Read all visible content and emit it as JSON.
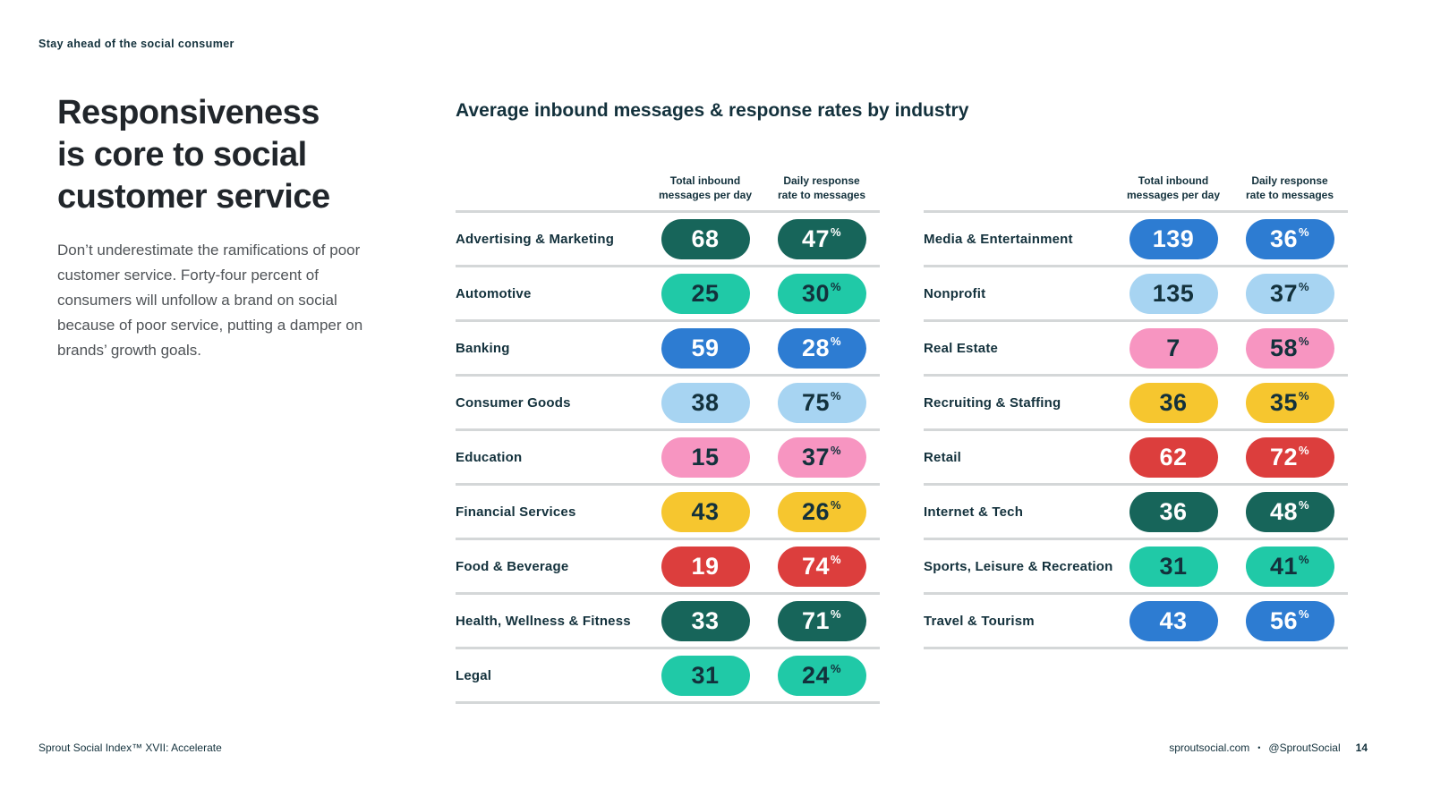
{
  "colors": {
    "page_bg": "#ffffff",
    "dark_navy": "#13313c",
    "heading_text": "#21262b",
    "body_text": "#4f5357",
    "rule_gray": "#d4d7d8",
    "pill_palette": {
      "dark_green": "#17655a",
      "teal": "#20c9a7",
      "blue": "#2d7cd2",
      "light_blue": "#a7d4f2",
      "pink": "#f795c1",
      "yellow": "#f6c62f",
      "red": "#dc3e3d"
    },
    "pill_text": {
      "light": "#ffffff",
      "dark": "#13313c"
    }
  },
  "header": {
    "tagline": "Stay ahead of the social consumer"
  },
  "intro": {
    "heading_lines": [
      "Responsiveness",
      "is core to social",
      "customer service"
    ],
    "body": "Don’t underestimate the ramifications of poor customer service. Forty-four percent of consumers will unfollow a brand on social because of poor service, putting a damper on brands’ growth goals."
  },
  "chart": {
    "title": "Average inbound messages & response rates by industry",
    "col_total_lines": [
      "Total inbound",
      "messages per day"
    ],
    "col_rate_lines": [
      "Daily response",
      "rate to messages"
    ],
    "percent_sign": "%"
  },
  "tables": {
    "left": [
      {
        "label": "Advertising & Marketing",
        "messages": "68",
        "rate": "47",
        "color": "dark_green",
        "text": "light"
      },
      {
        "label": "Automotive",
        "messages": "25",
        "rate": "30",
        "color": "teal",
        "text": "dark"
      },
      {
        "label": "Banking",
        "messages": "59",
        "rate": "28",
        "color": "blue",
        "text": "light"
      },
      {
        "label": "Consumer Goods",
        "messages": "38",
        "rate": "75",
        "color": "light_blue",
        "text": "dark"
      },
      {
        "label": "Education",
        "messages": "15",
        "rate": "37",
        "color": "pink",
        "text": "dark"
      },
      {
        "label": "Financial Services",
        "messages": "43",
        "rate": "26",
        "color": "yellow",
        "text": "dark"
      },
      {
        "label": "Food & Beverage",
        "messages": "19",
        "rate": "74",
        "color": "red",
        "text": "light"
      },
      {
        "label": "Health, Wellness & Fitness",
        "messages": "33",
        "rate": "71",
        "color": "dark_green",
        "text": "light"
      },
      {
        "label": "Legal",
        "messages": "31",
        "rate": "24",
        "color": "teal",
        "text": "dark"
      }
    ],
    "right": [
      {
        "label": "Media & Entertainment",
        "messages": "139",
        "rate": "36",
        "color": "blue",
        "text": "light"
      },
      {
        "label": "Nonprofit",
        "messages": "135",
        "rate": "37",
        "color": "light_blue",
        "text": "dark"
      },
      {
        "label": "Real Estate",
        "messages": "7",
        "rate": "58",
        "color": "pink",
        "text": "dark"
      },
      {
        "label": "Recruiting & Staffing",
        "messages": "36",
        "rate": "35",
        "color": "yellow",
        "text": "dark"
      },
      {
        "label": "Retail",
        "messages": "62",
        "rate": "72",
        "color": "red",
        "text": "light"
      },
      {
        "label": "Internet & Tech",
        "messages": "36",
        "rate": "48",
        "color": "dark_green",
        "text": "light"
      },
      {
        "label": "Sports, Leisure & Recreation",
        "messages": "31",
        "rate": "41",
        "color": "teal",
        "text": "dark"
      },
      {
        "label": "Travel & Tourism",
        "messages": "43",
        "rate": "56",
        "color": "blue",
        "text": "light"
      }
    ]
  },
  "footer": {
    "left": "Sprout Social Index™ XVII: Accelerate",
    "site": "sproutsocial.com",
    "separator": "•",
    "handle": "@SproutSocial",
    "page_number": "14"
  },
  "chart_data": {
    "type": "table",
    "title": "Average inbound messages & response rates by industry",
    "columns": [
      "Industry",
      "Total inbound messages per day",
      "Daily response rate to messages (%)"
    ],
    "rows": [
      [
        "Advertising & Marketing",
        68,
        47
      ],
      [
        "Automotive",
        25,
        30
      ],
      [
        "Banking",
        59,
        28
      ],
      [
        "Consumer Goods",
        38,
        75
      ],
      [
        "Education",
        15,
        37
      ],
      [
        "Financial Services",
        43,
        26
      ],
      [
        "Food & Beverage",
        19,
        74
      ],
      [
        "Health, Wellness & Fitness",
        33,
        71
      ],
      [
        "Legal",
        31,
        24
      ],
      [
        "Media & Entertainment",
        139,
        36
      ],
      [
        "Nonprofit",
        135,
        37
      ],
      [
        "Real Estate",
        7,
        58
      ],
      [
        "Recruiting & Staffing",
        36,
        35
      ],
      [
        "Retail",
        62,
        72
      ],
      [
        "Internet & Tech",
        36,
        48
      ],
      [
        "Sports, Leisure & Recreation",
        31,
        41
      ],
      [
        "Travel & Tourism",
        43,
        56
      ]
    ],
    "layout": "two side-by-side tables, pill-shaped value badges, light gray row rules"
  }
}
